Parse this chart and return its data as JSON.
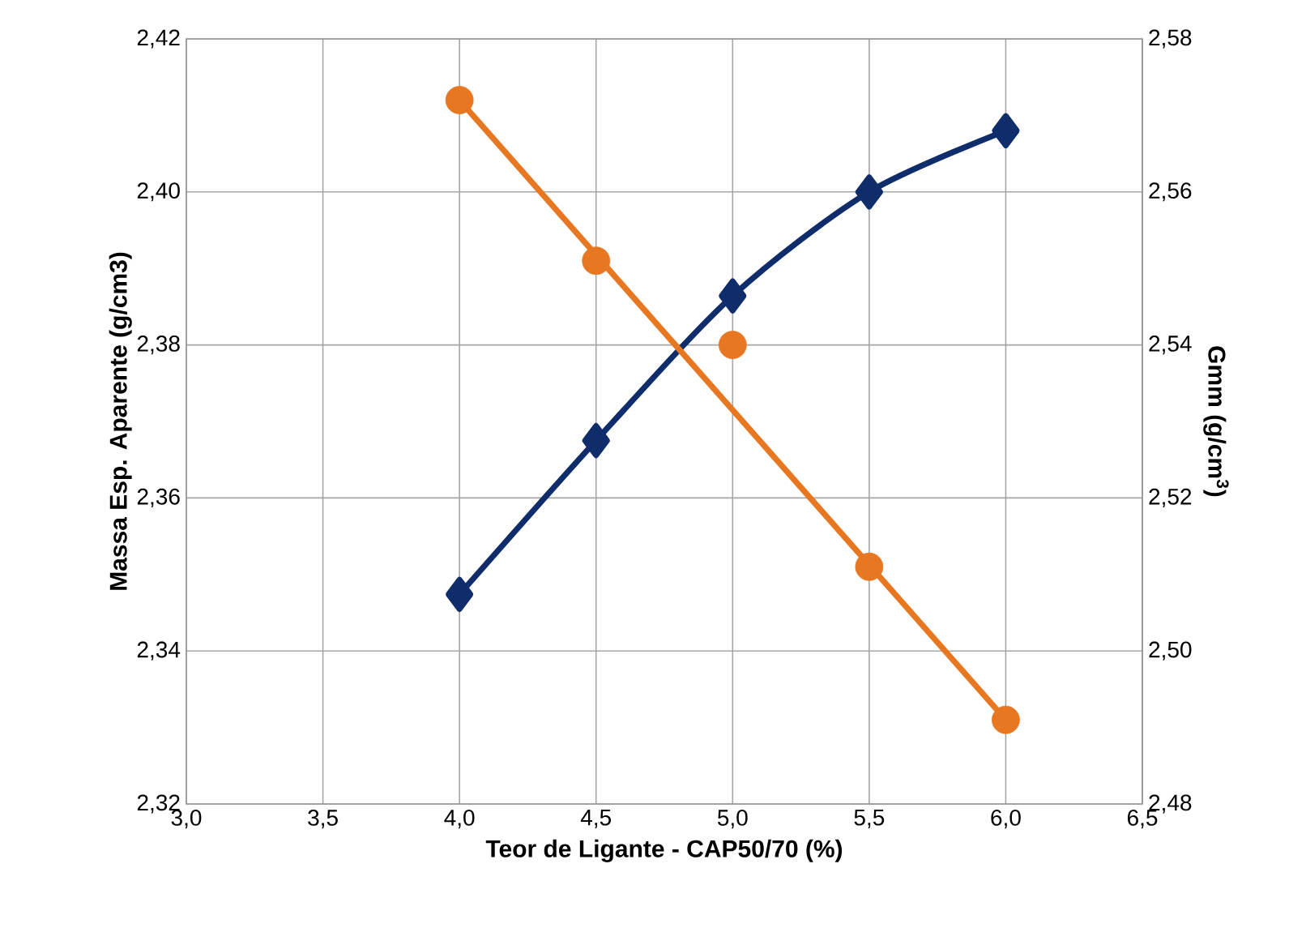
{
  "chart_data": {
    "type": "line",
    "xlabel": "Teor de Ligante - CAP50/70 (%)",
    "ylabel": "Massa Esp. Aparente (g/cm3)",
    "y2label": "Gmm (g/cm$^{3}$)",
    "xlim": [
      3,
      6.5
    ],
    "xticks": [
      {
        "value": 3,
        "label": "3,0"
      },
      {
        "value": 3.5,
        "label": "3,5"
      },
      {
        "value": 4,
        "label": "4,0"
      },
      {
        "value": 4.5,
        "label": "4,5"
      },
      {
        "value": 5,
        "label": "5,0"
      },
      {
        "value": 5.5,
        "label": "5,5"
      },
      {
        "value": 6,
        "label": "6,0"
      },
      {
        "value": 6.5,
        "label": "6,5"
      }
    ],
    "ylim": [
      2.32,
      2.42
    ],
    "yticks": [
      {
        "value": 2.32,
        "label": "2,32"
      },
      {
        "value": 2.34,
        "label": "2,34"
      },
      {
        "value": 2.36,
        "label": "2,36"
      },
      {
        "value": 2.38,
        "label": "2,38"
      },
      {
        "value": 2.4,
        "label": "2,40"
      },
      {
        "value": 2.42,
        "label": "2,42"
      }
    ],
    "y2lim": [
      2.48,
      2.58
    ],
    "y2ticks": [
      {
        "value": 2.48,
        "label": "2,48"
      },
      {
        "value": 2.5,
        "label": "2,50"
      },
      {
        "value": 2.52,
        "label": "2,52"
      },
      {
        "value": 2.54,
        "label": "2,54"
      },
      {
        "value": 2.56,
        "label": "2,56"
      },
      {
        "value": 2.58,
        "label": "2,58"
      }
    ],
    "grid": true,
    "series": [
      {
        "color": "#0f2d6b",
        "marker": "diamond",
        "x": [
          4,
          4.5,
          5,
          5.5,
          6
        ],
        "values": [
          2.3474,
          2.3675,
          2.3864,
          2.4,
          2.408
        ]
      },
      {
        "type": "scatter",
        "axis": "y2",
        "color": "#e87722",
        "marker": "circle",
        "x": [
          4,
          4.5,
          5,
          5.5,
          6
        ],
        "values": [
          2.572,
          2.551,
          2.54,
          2.511,
          2.491
        ]
      },
      {
        "type": "line",
        "axis": "y2",
        "color": "#e87722",
        "marker": "none",
        "x": [
          4,
          6
        ],
        "values": [
          2.572,
          2.491
        ]
      }
    ]
  }
}
